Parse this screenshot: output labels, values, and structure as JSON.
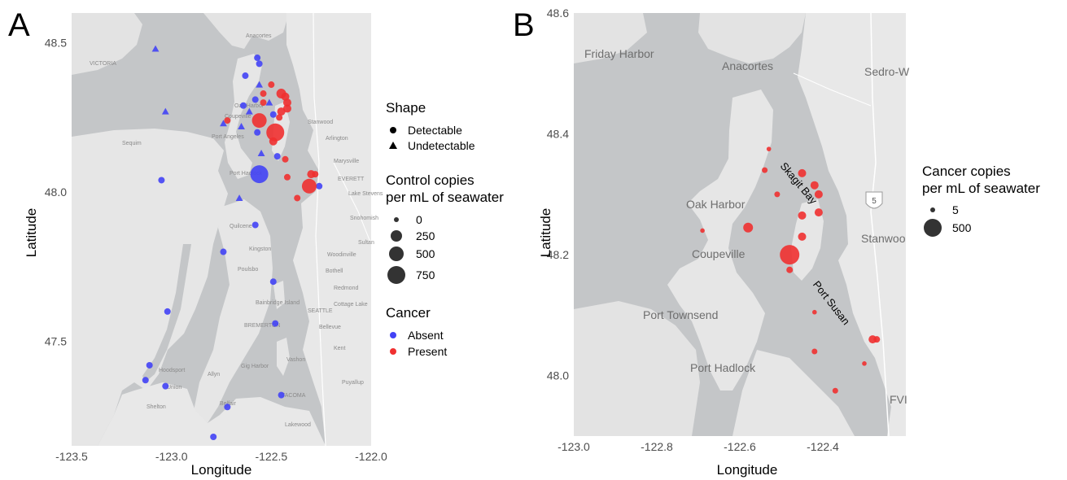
{
  "panel_a": {
    "letter": "A",
    "xlabel": "Longitude",
    "ylabel": "Latitude",
    "xlim": [
      -123.5,
      -122.0
    ],
    "ylim": [
      47.15,
      48.6
    ],
    "x_ticks": [
      "-123.5",
      "-123.0",
      "-122.5",
      "-122.0"
    ],
    "y_ticks": [
      "47.5",
      "48.0",
      "48.5"
    ],
    "place_labels": [
      "VICTORIA",
      "Port Angeles",
      "Sequim",
      "Port Hadlock",
      "Oak Harbor",
      "Coupeville",
      "Anacortes",
      "Stanwood",
      "Arlington",
      "Marysville",
      "EVERETT",
      "Lake Stevens",
      "Snohomish",
      "Sultan",
      "Quilcene",
      "Poulsbo",
      "Bothell",
      "Redmond",
      "Woodinville",
      "Cottage Lake",
      "SEATTLE",
      "BREMERTON",
      "Bellevue",
      "Kent",
      "Vashon",
      "Allyn",
      "Hoodsport",
      "TACOMA",
      "Lakewood",
      "Shelton",
      "Puyallup",
      "Gig Harbor",
      "Bainbridge Island",
      "Kingston",
      "Union",
      "Belfair"
    ],
    "legend_shape": {
      "title": "Shape",
      "items": [
        "Detectable",
        "Undetectable"
      ]
    },
    "legend_size": {
      "title_line1": "Control copies",
      "title_line2": "per mL of seawater",
      "items": [
        "0",
        "250",
        "500",
        "750"
      ]
    },
    "legend_color": {
      "title": "Cancer",
      "items": [
        {
          "label": "Absent",
          "color": "#4242f5"
        },
        {
          "label": "Present",
          "color": "#f03030"
        }
      ]
    }
  },
  "panel_b": {
    "letter": "B",
    "xlabel": "Longitude",
    "ylabel": "Latitude",
    "xlim": [
      -123.0,
      -122.2
    ],
    "ylim": [
      47.9,
      48.6
    ],
    "x_ticks": [
      "-123.0",
      "-122.8",
      "-122.6",
      "-122.4"
    ],
    "y_ticks": [
      "48.0",
      "48.2",
      "48.4",
      "48.6"
    ],
    "place_labels": [
      "Friday Harbor",
      "Anacortes",
      "Sedro-W",
      "Oak Harbor",
      "Stanwoo",
      "Coupeville",
      "Port Townsend",
      "Port Hadlock",
      "FVI",
      "5"
    ],
    "annotations": [
      "Skagit Bay",
      "Port Susan"
    ],
    "legend_size": {
      "title_line1": "Cancer copies",
      "title_line2": "per mL of seawater",
      "items": [
        "5",
        "500"
      ]
    }
  },
  "chart_data": [
    {
      "type": "scatter",
      "panel": "A",
      "xlabel": "Longitude",
      "ylabel": "Latitude",
      "xlim": [
        -123.5,
        -122.0
      ],
      "ylim": [
        47.15,
        48.6
      ],
      "series": [
        {
          "name": "Absent",
          "color": "#4242f5",
          "points": [
            {
              "lon": -123.08,
              "lat": 48.48,
              "shape": "Undetectable",
              "control": 20
            },
            {
              "lon": -123.03,
              "lat": 48.27,
              "shape": "Undetectable",
              "control": 20
            },
            {
              "lon": -122.57,
              "lat": 48.45,
              "shape": "Detectable",
              "control": 20
            },
            {
              "lon": -122.56,
              "lat": 48.43,
              "shape": "Detectable",
              "control": 20
            },
            {
              "lon": -122.63,
              "lat": 48.39,
              "shape": "Detectable",
              "control": 20
            },
            {
              "lon": -122.56,
              "lat": 48.36,
              "shape": "Undetectable",
              "control": 20
            },
            {
              "lon": -122.58,
              "lat": 48.31,
              "shape": "Detectable",
              "control": 20
            },
            {
              "lon": -122.64,
              "lat": 48.29,
              "shape": "Detectable",
              "control": 20
            },
            {
              "lon": -122.51,
              "lat": 48.3,
              "shape": "Undetectable",
              "control": 20
            },
            {
              "lon": -122.61,
              "lat": 48.27,
              "shape": "Undetectable",
              "control": 20
            },
            {
              "lon": -122.49,
              "lat": 48.26,
              "shape": "Detectable",
              "control": 20
            },
            {
              "lon": -122.74,
              "lat": 48.23,
              "shape": "Undetectable",
              "control": 20
            },
            {
              "lon": -122.65,
              "lat": 48.22,
              "shape": "Undetectable",
              "control": 20
            },
            {
              "lon": -122.57,
              "lat": 48.2,
              "shape": "Detectable",
              "control": 20
            },
            {
              "lon": -122.55,
              "lat": 48.13,
              "shape": "Undetectable",
              "control": 20
            },
            {
              "lon": -122.47,
              "lat": 48.12,
              "shape": "Detectable",
              "control": 20
            },
            {
              "lon": -122.56,
              "lat": 48.06,
              "shape": "Detectable",
              "control": 900
            },
            {
              "lon": -122.26,
              "lat": 48.02,
              "shape": "Detectable",
              "control": 20
            },
            {
              "lon": -123.05,
              "lat": 48.04,
              "shape": "Detectable",
              "control": 20
            },
            {
              "lon": -122.66,
              "lat": 47.98,
              "shape": "Undetectable",
              "control": 20
            },
            {
              "lon": -122.58,
              "lat": 47.89,
              "shape": "Detectable",
              "control": 20
            },
            {
              "lon": -122.74,
              "lat": 47.8,
              "shape": "Detectable",
              "control": 20
            },
            {
              "lon": -122.49,
              "lat": 47.7,
              "shape": "Detectable",
              "control": 20
            },
            {
              "lon": -123.02,
              "lat": 47.6,
              "shape": "Detectable",
              "control": 20
            },
            {
              "lon": -122.48,
              "lat": 47.56,
              "shape": "Detectable",
              "control": 20
            },
            {
              "lon": -123.11,
              "lat": 47.42,
              "shape": "Detectable",
              "control": 20
            },
            {
              "lon": -123.13,
              "lat": 47.37,
              "shape": "Detectable",
              "control": 20
            },
            {
              "lon": -123.03,
              "lat": 47.35,
              "shape": "Detectable",
              "control": 20
            },
            {
              "lon": -122.45,
              "lat": 47.32,
              "shape": "Detectable",
              "control": 20
            },
            {
              "lon": -122.72,
              "lat": 47.28,
              "shape": "Detectable",
              "control": 20
            },
            {
              "lon": -122.79,
              "lat": 47.18,
              "shape": "Detectable",
              "control": 20
            }
          ]
        },
        {
          "name": "Present",
          "color": "#f03030",
          "points": [
            {
              "lon": -122.5,
              "lat": 48.36,
              "shape": "Detectable",
              "control": 20
            },
            {
              "lon": -122.45,
              "lat": 48.33,
              "shape": "Detectable",
              "control": 60
            },
            {
              "lon": -122.43,
              "lat": 48.32,
              "shape": "Detectable",
              "control": 40
            },
            {
              "lon": -122.42,
              "lat": 48.3,
              "shape": "Detectable",
              "control": 40
            },
            {
              "lon": -122.54,
              "lat": 48.33,
              "shape": "Detectable",
              "control": 20
            },
            {
              "lon": -122.42,
              "lat": 48.28,
              "shape": "Detectable",
              "control": 40
            },
            {
              "lon": -122.45,
              "lat": 48.27,
              "shape": "Detectable",
              "control": 40
            },
            {
              "lon": -122.54,
              "lat": 48.3,
              "shape": "Detectable",
              "control": 20
            },
            {
              "lon": -122.72,
              "lat": 48.24,
              "shape": "Detectable",
              "control": 20
            },
            {
              "lon": -122.56,
              "lat": 48.24,
              "shape": "Detectable",
              "control": 400
            },
            {
              "lon": -122.46,
              "lat": 48.25,
              "shape": "Detectable",
              "control": 20
            },
            {
              "lon": -122.48,
              "lat": 48.2,
              "shape": "Detectable",
              "control": 900
            },
            {
              "lon": -122.49,
              "lat": 48.17,
              "shape": "Detectable",
              "control": 40
            },
            {
              "lon": -122.43,
              "lat": 48.11,
              "shape": "Detectable",
              "control": 20
            },
            {
              "lon": -122.3,
              "lat": 48.06,
              "shape": "Detectable",
              "control": 40
            },
            {
              "lon": -122.28,
              "lat": 48.06,
              "shape": "Detectable",
              "control": 20
            },
            {
              "lon": -122.42,
              "lat": 48.05,
              "shape": "Detectable",
              "control": 20
            },
            {
              "lon": -122.31,
              "lat": 48.02,
              "shape": "Detectable",
              "control": 400
            },
            {
              "lon": -122.37,
              "lat": 47.98,
              "shape": "Detectable",
              "control": 20
            }
          ]
        }
      ]
    },
    {
      "type": "scatter",
      "panel": "B",
      "xlabel": "Longitude",
      "ylabel": "Latitude",
      "xlim": [
        -123.0,
        -122.2
      ],
      "ylim": [
        47.9,
        48.6
      ],
      "series": [
        {
          "name": "Present",
          "color": "#f03030",
          "points": [
            {
              "lon": -122.53,
              "lat": 48.375,
              "cancer": 5
            },
            {
              "lon": -122.54,
              "lat": 48.34,
              "cancer": 8
            },
            {
              "lon": -122.45,
              "lat": 48.335,
              "cancer": 60
            },
            {
              "lon": -122.42,
              "lat": 48.315,
              "cancer": 60
            },
            {
              "lon": -122.41,
              "lat": 48.3,
              "cancer": 40
            },
            {
              "lon": -122.51,
              "lat": 48.3,
              "cancer": 8
            },
            {
              "lon": -122.41,
              "lat": 48.27,
              "cancer": 60
            },
            {
              "lon": -122.45,
              "lat": 48.265,
              "cancer": 60
            },
            {
              "lon": -122.69,
              "lat": 48.24,
              "cancer": 5
            },
            {
              "lon": -122.58,
              "lat": 48.245,
              "cancer": 80
            },
            {
              "lon": -122.45,
              "lat": 48.23,
              "cancer": 40
            },
            {
              "lon": -122.48,
              "lat": 48.2,
              "cancer": 500
            },
            {
              "lon": -122.48,
              "lat": 48.175,
              "cancer": 20
            },
            {
              "lon": -122.42,
              "lat": 48.105,
              "cancer": 5
            },
            {
              "lon": -122.28,
              "lat": 48.06,
              "cancer": 40
            },
            {
              "lon": -122.27,
              "lat": 48.06,
              "cancer": 20
            },
            {
              "lon": -122.42,
              "lat": 48.04,
              "cancer": 8
            },
            {
              "lon": -122.3,
              "lat": 48.02,
              "cancer": 5
            },
            {
              "lon": -122.37,
              "lat": 47.975,
              "cancer": 8
            }
          ]
        }
      ]
    }
  ]
}
